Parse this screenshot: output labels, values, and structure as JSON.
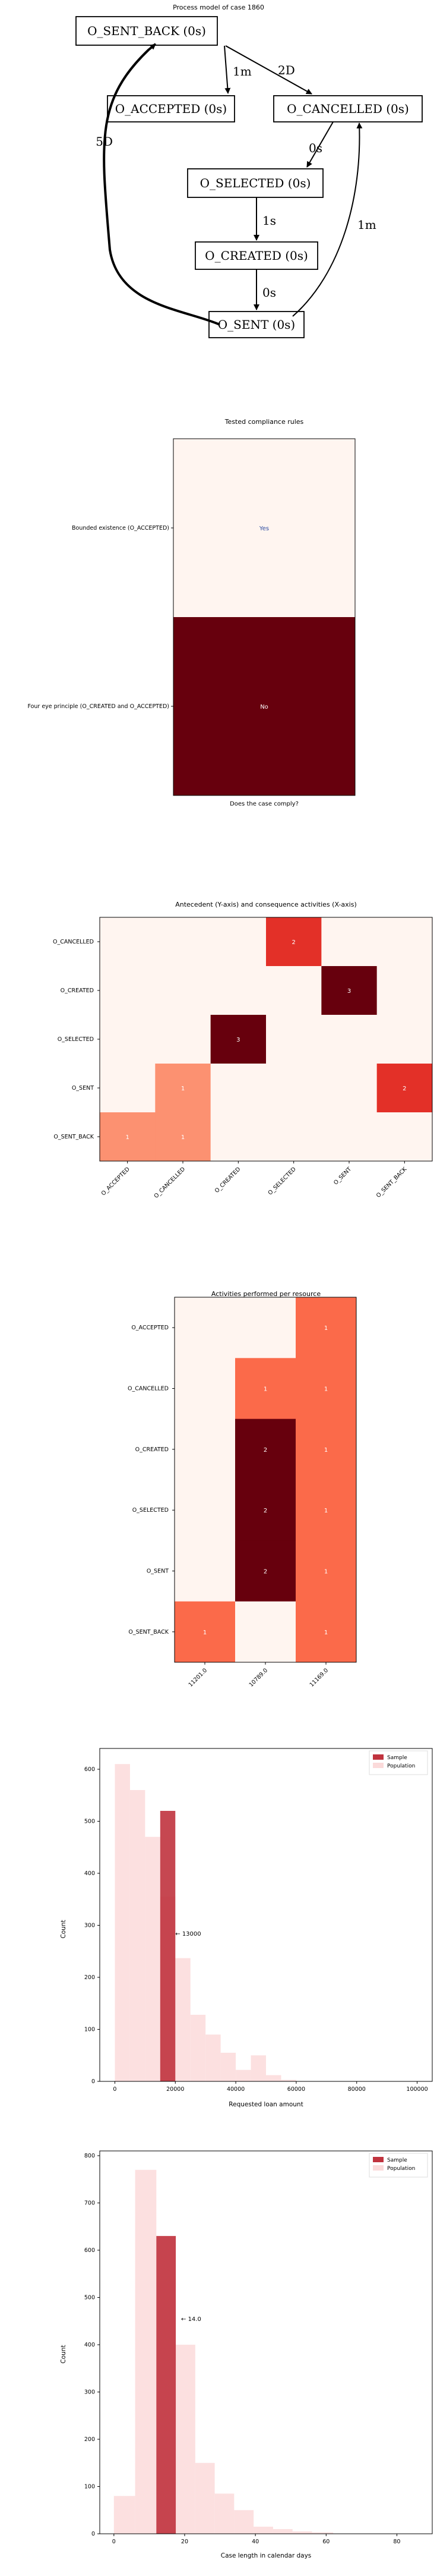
{
  "process_model": {
    "title": "Process model of case 1860",
    "nodes": [
      {
        "id": "sent_back",
        "label": "O_SENT_BACK (0s)"
      },
      {
        "id": "accepted",
        "label": "O_ACCEPTED (0s)"
      },
      {
        "id": "cancelled",
        "label": "O_CANCELLED (0s)"
      },
      {
        "id": "selected",
        "label": "O_SELECTED (0s)"
      },
      {
        "id": "created",
        "label": "O_CREATED (0s)"
      },
      {
        "id": "sent",
        "label": "O_SENT (0s)"
      }
    ],
    "edges": [
      {
        "from": "sent_back",
        "to": "accepted",
        "label": "1m"
      },
      {
        "from": "sent_back",
        "to": "cancelled",
        "label": "2D"
      },
      {
        "from": "cancelled",
        "to": "selected",
        "label": "0s"
      },
      {
        "from": "selected",
        "to": "created",
        "label": "1s"
      },
      {
        "from": "created",
        "to": "sent",
        "label": "0s"
      },
      {
        "from": "sent",
        "to": "sent_back",
        "label": "5D"
      },
      {
        "from": "sent",
        "to": "cancelled",
        "label": "1m"
      }
    ]
  },
  "chart_data": [
    {
      "type": "heatmap",
      "title": "Tested compliance rules",
      "xlabel": "Does the case comply?",
      "rows": [
        "Bounded existence (O_ACCEPTED)",
        "Four eye principle (O_CREATED and O_ACCEPTED)"
      ],
      "values": [
        0,
        1
      ],
      "cell_labels": [
        "Yes",
        "No"
      ],
      "colors": {
        "low": "#fff5f0",
        "high": "#67000d"
      }
    },
    {
      "type": "heatmap",
      "title": "Antecedent (Y-axis) and consequence activities (X-axis)",
      "rows": [
        "O_CANCELLED",
        "O_CREATED",
        "O_SELECTED",
        "O_SENT",
        "O_SENT_BACK"
      ],
      "columns": [
        "O_ACCEPTED",
        "O_CANCELLED",
        "O_CREATED",
        "O_SELECTED",
        "O_SENT",
        "O_SENT_BACK"
      ],
      "values": [
        [
          0,
          0,
          0,
          2,
          0,
          0
        ],
        [
          0,
          0,
          0,
          0,
          3,
          0
        ],
        [
          0,
          0,
          3,
          0,
          0,
          0
        ],
        [
          0,
          1,
          0,
          0,
          0,
          2
        ],
        [
          1,
          1,
          0,
          0,
          0,
          0
        ]
      ],
      "max": 3
    },
    {
      "type": "heatmap",
      "title": "Activities performed per resource",
      "rows": [
        "O_ACCEPTED",
        "O_CANCELLED",
        "O_CREATED",
        "O_SELECTED",
        "O_SENT",
        "O_SENT_BACK"
      ],
      "columns": [
        "11201.0",
        "10789.0",
        "11169.0"
      ],
      "values": [
        [
          0,
          0,
          1
        ],
        [
          0,
          1,
          1
        ],
        [
          0,
          2,
          1
        ],
        [
          0,
          2,
          1
        ],
        [
          0,
          2,
          1
        ],
        [
          1,
          0,
          1
        ]
      ],
      "max": 2
    },
    {
      "type": "bar",
      "title": "",
      "xlabel": "Requested loan amount",
      "ylabel": "Count",
      "xlim": [
        -5000,
        105000
      ],
      "ylim": [
        0,
        640
      ],
      "xticks": [
        0,
        20000,
        40000,
        60000,
        80000,
        100000
      ],
      "yticks": [
        0,
        100,
        200,
        300,
        400,
        500,
        600
      ],
      "legend": "top-right",
      "series": [
        {
          "name": "Sample",
          "bins": [
            [
              15000,
              20000,
              520
            ]
          ],
          "color": "#c0333e"
        },
        {
          "name": "Population",
          "bins": [
            [
              0,
              5000,
              610
            ],
            [
              5000,
              10000,
              560
            ],
            [
              10000,
              15000,
              470
            ],
            [
              15000,
              20000,
              355
            ],
            [
              20000,
              25000,
              237
            ],
            [
              25000,
              30000,
              128
            ],
            [
              30000,
              35000,
              90
            ],
            [
              35000,
              40000,
              55
            ],
            [
              40000,
              45000,
              22
            ],
            [
              45000,
              50000,
              50
            ],
            [
              50000,
              55000,
              12
            ],
            [
              55000,
              60000,
              3
            ]
          ],
          "color": "#fbdada"
        }
      ],
      "annotation": "← 13000",
      "annotation_at": [
        20000,
        280
      ]
    },
    {
      "type": "bar",
      "title": "",
      "xlabel": "Case length in calendar days",
      "ylabel": "Count",
      "xlim": [
        -4,
        90
      ],
      "ylim": [
        0,
        810
      ],
      "xticks": [
        0,
        20,
        40,
        60,
        80
      ],
      "yticks": [
        0,
        100,
        200,
        300,
        400,
        500,
        600,
        700,
        800
      ],
      "legend": "top-right",
      "series": [
        {
          "name": "Sample",
          "bins": [
            [
              12,
              17.5,
              630
            ]
          ],
          "color": "#c0333e"
        },
        {
          "name": "Population",
          "bins": [
            [
              0,
              6,
              80
            ],
            [
              6,
              12,
              770
            ],
            [
              12,
              17.5,
              630
            ],
            [
              17.5,
              23,
              400
            ],
            [
              23,
              28.5,
              150
            ],
            [
              28.5,
              34,
              85
            ],
            [
              34,
              39.5,
              50
            ],
            [
              39.5,
              45,
              15
            ],
            [
              45,
              50.5,
              10
            ],
            [
              50.5,
              56,
              5
            ],
            [
              56,
              62,
              3
            ],
            [
              62,
              90,
              0
            ]
          ],
          "color": "#fbdada"
        }
      ],
      "annotation": "← 14.0",
      "annotation_at": [
        19,
        450
      ]
    }
  ]
}
